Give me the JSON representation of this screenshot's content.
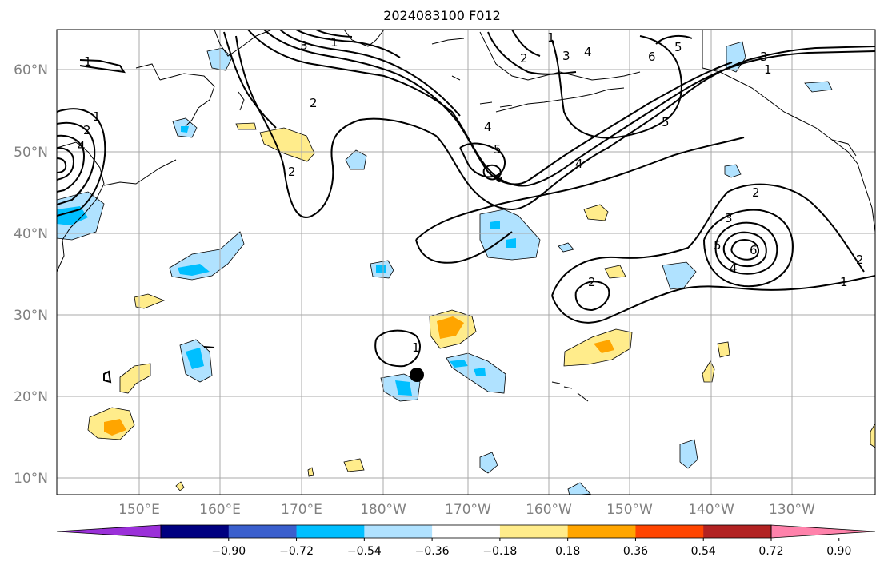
{
  "title": "2024083100 F012",
  "latitude_labels": [
    "60°N",
    "50°N",
    "40°N",
    "30°N",
    "20°N",
    "10°N"
  ],
  "longitude_labels": [
    "150°E",
    "160°E",
    "170°E",
    "180°W",
    "170°W",
    "160°W",
    "150°W",
    "140°W",
    "130°W"
  ],
  "colorbar": {
    "tick_labels": [
      "−0.90",
      "−0.72",
      "−0.54",
      "−0.36",
      "−0.18",
      "0.18",
      "0.36",
      "0.54",
      "0.72",
      "0.90"
    ],
    "colors": [
      "#9b30d9",
      "#000080",
      "#3a5fcd",
      "#00bfff",
      "#b0e2ff",
      "#ffffff",
      "#ffec8b",
      "#ffa500",
      "#ff4500",
      "#b22222",
      "#ff82ab"
    ]
  },
  "contour_labels": [
    "1",
    "2",
    "3",
    "4",
    "5",
    "6"
  ],
  "gridlines": "on",
  "marker": "storm-center-dot"
}
